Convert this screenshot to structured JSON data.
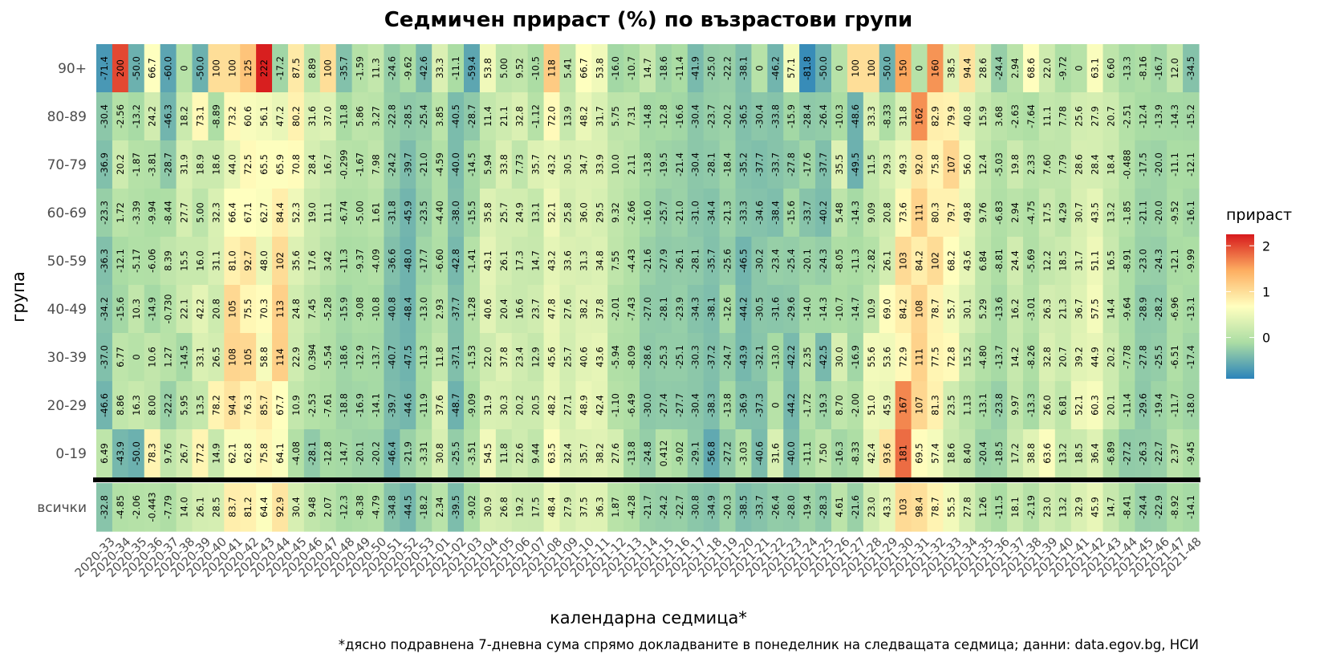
{
  "chart_data": {
    "type": "heatmap",
    "title": "Седмичен прираст (%) по възрастови групи",
    "xlabel": "календарна седмица*",
    "ylabel": "група",
    "caption": "*дясно подравнена 7-дневна сума спрямо докладваните в понеделник на следващата седмица; данни: data.egov.bg, НСИ",
    "legend_title": "прираст",
    "legend_ticks": [
      "2",
      "1",
      "0"
    ],
    "legend_tick_values": [
      2,
      1,
      0
    ],
    "color_range": [
      -0.9,
      2.25
    ],
    "colors": [
      "#2b83ba",
      "#abdda4",
      "#ffffbf",
      "#fdae61",
      "#d7191c"
    ],
    "weeks": [
      "2020-33",
      "2020-34",
      "2020-35",
      "2020-36",
      "2020-37",
      "2020-38",
      "2020-39",
      "2020-40",
      "2020-41",
      "2020-42",
      "2020-43",
      "2020-44",
      "2020-45",
      "2020-46",
      "2020-47",
      "2020-48",
      "2020-49",
      "2020-50",
      "2020-51",
      "2020-52",
      "2020-53",
      "2021-01",
      "2021-02",
      "2021-03",
      "2021-04",
      "2021-05",
      "2021-06",
      "2021-07",
      "2021-08",
      "2021-09",
      "2021-10",
      "2021-11",
      "2021-12",
      "2021-13",
      "2021-14",
      "2021-15",
      "2021-16",
      "2021-17",
      "2021-18",
      "2021-19",
      "2021-20",
      "2021-21",
      "2021-22",
      "2021-23",
      "2021-24",
      "2021-25",
      "2021-26",
      "2021-27",
      "2021-28",
      "2021-29",
      "2021-30",
      "2021-31",
      "2021-32",
      "2021-33",
      "2021-34",
      "2021-35",
      "2021-36",
      "2021-37",
      "2021-38",
      "2021-39",
      "2021-40",
      "2021-41",
      "2021-42",
      "2021-43",
      "2021-44",
      "2021-45",
      "2021-46",
      "2021-47",
      "2021-48"
    ],
    "rows": [
      {
        "group": "90+",
        "values": [
          "-71.4",
          "200",
          "-50.0",
          "66.7",
          "-60.0",
          "0",
          "-50.0",
          "100",
          "100",
          "125",
          "222",
          "-17.2",
          "87.5",
          "8.89",
          "100",
          "-35.7",
          "-1.59",
          "11.3",
          "-24.6",
          "-9.62",
          "-42.6",
          "33.3",
          "-11.1",
          "-59.4",
          "53.8",
          "5.00",
          "9.52",
          "-10.5",
          "118",
          "5.41",
          "66.7",
          "53.8",
          "-16.0",
          "-10.7",
          "14.7",
          "-18.6",
          "-11.4",
          "-41.9",
          "-25.0",
          "-22.2",
          "-38.1",
          "0",
          "-46.2",
          "57.1",
          "-81.8",
          "-50.0",
          "0",
          "100",
          "100",
          "-50.0",
          "150",
          "0",
          "160",
          "38.5",
          "94.4",
          "28.6",
          "-24.4",
          "2.94",
          "68.6",
          "22.0",
          "-9.72",
          "0",
          "63.1",
          "6.60",
          "-13.3",
          "-8.16",
          "-16.7",
          "12.0",
          "-34.5"
        ]
      },
      {
        "group": "80-89",
        "values": [
          "-30.4",
          "-2.56",
          "-13.2",
          "24.2",
          "-46.3",
          "18.2",
          "73.1",
          "-8.89",
          "73.2",
          "60.6",
          "56.1",
          "47.2",
          "80.2",
          "31.6",
          "37.0",
          "-11.8",
          "5.86",
          "3.27",
          "-22.8",
          "-28.5",
          "-25.4",
          "3.85",
          "-40.5",
          "-28.7",
          "11.4",
          "21.1",
          "32.8",
          "-1.12",
          "72.0",
          "13.9",
          "48.2",
          "31.7",
          "5.75",
          "7.31",
          "-14.8",
          "-12.8",
          "-16.6",
          "-30.4",
          "-23.7",
          "-20.2",
          "-36.5",
          "-30.4",
          "-33.8",
          "-15.9",
          "-28.4",
          "-26.4",
          "-10.3",
          "-48.6",
          "33.3",
          "-8.33",
          "31.8",
          "162",
          "82.9",
          "79.9",
          "40.8",
          "15.9",
          "3.68",
          "-2.63",
          "-7.64",
          "11.1",
          "7.78",
          "25.6",
          "27.9",
          "20.7",
          "-2.51",
          "-12.4",
          "-13.9",
          "-14.3",
          "-15.2"
        ]
      },
      {
        "group": "70-79",
        "values": [
          "-36.9",
          "20.2",
          "-1.87",
          "-3.81",
          "-28.7",
          "31.9",
          "18.9",
          "18.6",
          "44.0",
          "72.5",
          "65.5",
          "65.9",
          "70.8",
          "28.4",
          "16.7",
          "-0.299",
          "-1.67",
          "7.98",
          "-24.2",
          "-39.7",
          "-21.0",
          "-4.59",
          "-40.0",
          "-14.5",
          "5.94",
          "33.8",
          "7.73",
          "35.7",
          "43.2",
          "30.5",
          "34.7",
          "33.9",
          "10.0",
          "2.11",
          "-13.8",
          "-19.5",
          "-21.4",
          "-30.4",
          "-28.1",
          "-18.4",
          "-35.2",
          "-37.7",
          "-33.7",
          "-27.8",
          "-17.6",
          "-37.7",
          "35.5",
          "-49.5",
          "11.5",
          "29.3",
          "49.3",
          "92.0",
          "75.8",
          "107",
          "56.0",
          "12.4",
          "-5.03",
          "19.8",
          "2.33",
          "7.60",
          "7.79",
          "28.6",
          "28.4",
          "18.4",
          "-0.488",
          "-17.5",
          "-20.0",
          "-11.1",
          "-12.1"
        ]
      },
      {
        "group": "60-69",
        "values": [
          "-23.3",
          "1.72",
          "-3.39",
          "-9.94",
          "-8.44",
          "27.7",
          "5.00",
          "32.3",
          "66.4",
          "67.1",
          "62.7",
          "84.4",
          "52.3",
          "19.0",
          "11.1",
          "-6.74",
          "-5.00",
          "1.61",
          "-31.8",
          "-45.9",
          "-23.5",
          "-4.40",
          "-38.0",
          "-15.5",
          "35.8",
          "25.7",
          "24.9",
          "13.1",
          "52.1",
          "25.8",
          "36.0",
          "29.5",
          "9.32",
          "-2.66",
          "-16.0",
          "-25.7",
          "-21.0",
          "-31.0",
          "-34.4",
          "-21.3",
          "-33.3",
          "-34.6",
          "-38.4",
          "-15.6",
          "-33.7",
          "-40.2",
          "5.48",
          "-14.3",
          "9.09",
          "20.8",
          "73.6",
          "111",
          "80.3",
          "79.7",
          "49.8",
          "9.76",
          "-6.83",
          "2.94",
          "-4.75",
          "17.5",
          "4.29",
          "30.7",
          "43.5",
          "13.2",
          "-1.85",
          "-21.1",
          "-20.0",
          "-9.52",
          "-16.1"
        ]
      },
      {
        "group": "50-59",
        "values": [
          "-36.3",
          "-12.1",
          "-5.17",
          "-6.06",
          "8.39",
          "15.5",
          "16.0",
          "31.1",
          "81.0",
          "92.7",
          "48.0",
          "102",
          "35.6",
          "17.6",
          "3.42",
          "-11.3",
          "-9.37",
          "-4.09",
          "-36.6",
          "-48.0",
          "-17.7",
          "-6.60",
          "-42.8",
          "-1.41",
          "43.1",
          "26.1",
          "17.3",
          "14.7",
          "43.2",
          "33.6",
          "31.3",
          "34.8",
          "7.55",
          "-4.43",
          "-21.6",
          "-27.9",
          "-26.1",
          "-28.1",
          "-35.7",
          "-25.6",
          "-46.5",
          "-30.2",
          "-23.4",
          "-25.4",
          "-20.1",
          "-24.3",
          "-8.05",
          "-11.3",
          "-2.82",
          "26.1",
          "103",
          "84.2",
          "102",
          "68.2",
          "43.6",
          "6.84",
          "-8.81",
          "24.4",
          "-5.69",
          "12.2",
          "18.5",
          "31.7",
          "51.1",
          "16.5",
          "-8.91",
          "-23.0",
          "-24.3",
          "-12.1",
          "-9.99"
        ]
      },
      {
        "group": "40-49",
        "values": [
          "-34.2",
          "-15.6",
          "10.3",
          "-14.9",
          "-0.730",
          "22.1",
          "42.2",
          "20.8",
          "105",
          "75.5",
          "70.3",
          "113",
          "24.8",
          "7.45",
          "-5.28",
          "-15.9",
          "-9.08",
          "-10.8",
          "-40.8",
          "-48.4",
          "-13.0",
          "2.93",
          "-37.7",
          "-1.28",
          "40.6",
          "20.4",
          "16.6",
          "23.7",
          "47.8",
          "27.6",
          "38.2",
          "37.8",
          "-2.01",
          "-7.43",
          "-27.0",
          "-28.1",
          "-23.9",
          "-34.3",
          "-38.1",
          "-12.6",
          "-44.2",
          "-30.5",
          "-31.6",
          "-29.6",
          "-14.0",
          "-14.3",
          "-10.7",
          "-14.7",
          "10.9",
          "69.0",
          "84.2",
          "108",
          "78.7",
          "55.7",
          "30.1",
          "5.29",
          "-13.6",
          "16.2",
          "-3.01",
          "26.3",
          "21.3",
          "36.7",
          "57.5",
          "14.4",
          "-9.64",
          "-28.9",
          "-28.2",
          "-6.96",
          "-13.1"
        ]
      },
      {
        "group": "30-39",
        "values": [
          "-37.0",
          "6.77",
          "0",
          "10.6",
          "1.27",
          "-14.5",
          "33.1",
          "26.5",
          "108",
          "105",
          "58.8",
          "114",
          "22.9",
          "0.394",
          "-5.54",
          "-18.6",
          "-12.9",
          "-13.7",
          "-40.7",
          "-47.5",
          "-11.3",
          "11.8",
          "-37.1",
          "-1.53",
          "22.0",
          "37.8",
          "23.4",
          "12.9",
          "45.6",
          "25.7",
          "40.6",
          "43.6",
          "-5.94",
          "-8.09",
          "-28.6",
          "-25.3",
          "-25.1",
          "-30.3",
          "-37.2",
          "-24.7",
          "-43.9",
          "-32.1",
          "-13.0",
          "-42.2",
          "2.35",
          "-42.5",
          "30.0",
          "-16.9",
          "55.6",
          "53.6",
          "72.9",
          "111",
          "77.5",
          "72.8",
          "15.2",
          "-4.80",
          "-13.7",
          "14.2",
          "-8.26",
          "32.8",
          "20.7",
          "39.2",
          "44.9",
          "20.2",
          "-7.78",
          "-27.8",
          "-25.5",
          "-6.51",
          "-17.4"
        ]
      },
      {
        "group": "20-29",
        "values": [
          "-46.6",
          "8.86",
          "16.3",
          "8.00",
          "-22.2",
          "5.95",
          "13.5",
          "78.2",
          "94.4",
          "76.3",
          "85.7",
          "67.7",
          "10.9",
          "-2.53",
          "-7.61",
          "-18.8",
          "-16.9",
          "-14.1",
          "-39.7",
          "-44.6",
          "-11.9",
          "37.6",
          "-48.7",
          "-9.09",
          "31.9",
          "30.3",
          "20.2",
          "20.5",
          "48.2",
          "27.1",
          "48.9",
          "42.4",
          "-1.10",
          "-6.49",
          "-30.0",
          "-27.4",
          "-27.7",
          "-30.4",
          "-38.3",
          "-13.8",
          "-36.9",
          "-37.3",
          "0",
          "-44.2",
          "-1.72",
          "-19.3",
          "8.70",
          "-2.00",
          "51.0",
          "45.9",
          "167",
          "107",
          "81.3",
          "23.5",
          "1.13",
          "-13.1",
          "-23.8",
          "9.97",
          "-13.3",
          "26.0",
          "6.81",
          "52.1",
          "60.3",
          "20.1",
          "-11.4",
          "-29.6",
          "-19.4",
          "-11.7",
          "-18.0"
        ]
      },
      {
        "group": "0-19",
        "values": [
          "6.49",
          "-43.9",
          "-50.0",
          "78.3",
          "9.76",
          "26.7",
          "77.2",
          "14.9",
          "62.1",
          "62.8",
          "75.8",
          "64.1",
          "-4.08",
          "-28.1",
          "-12.8",
          "-14.7",
          "-20.1",
          "-20.2",
          "-46.4",
          "-21.9",
          "-3.31",
          "30.8",
          "-25.5",
          "-3.51",
          "54.5",
          "11.8",
          "22.6",
          "9.44",
          "63.5",
          "32.4",
          "35.7",
          "38.2",
          "27.6",
          "-13.8",
          "-24.8",
          "0.412",
          "-9.02",
          "-29.1",
          "-56.8",
          "-27.2",
          "-3.03",
          "-40.6",
          "31.6",
          "-40.0",
          "-11.1",
          "7.50",
          "-16.3",
          "-8.33",
          "42.4",
          "93.6",
          "181",
          "69.5",
          "57.4",
          "18.6",
          "8.40",
          "-20.4",
          "-18.5",
          "17.2",
          "38.8",
          "63.6",
          "13.2",
          "18.5",
          "36.4",
          "-6.89",
          "-27.2",
          "-26.3",
          "-22.7",
          "2.37",
          "-9.45"
        ]
      },
      {
        "group": "всички",
        "values": [
          "-32.8",
          "-4.85",
          "-2.06",
          "-0.443",
          "-7.79",
          "14.0",
          "26.1",
          "28.5",
          "83.7",
          "81.2",
          "64.4",
          "92.9",
          "30.4",
          "9.48",
          "2.07",
          "-12.3",
          "-8.38",
          "-4.79",
          "-34.8",
          "-44.5",
          "-18.2",
          "2.34",
          "-39.5",
          "-9.02",
          "30.9",
          "26.8",
          "19.2",
          "17.5",
          "48.4",
          "27.9",
          "37.5",
          "36.3",
          "1.87",
          "-4.28",
          "-21.7",
          "-24.2",
          "-22.7",
          "-30.8",
          "-34.9",
          "-20.3",
          "-38.5",
          "-33.7",
          "-26.4",
          "-28.0",
          "-19.4",
          "-28.3",
          "4.61",
          "-21.6",
          "23.0",
          "43.3",
          "103",
          "98.4",
          "78.7",
          "55.5",
          "27.8",
          "1.26",
          "-11.5",
          "18.1",
          "-2.19",
          "23.0",
          "13.2",
          "32.9",
          "45.9",
          "14.7",
          "-8.41",
          "-24.4",
          "-22.9",
          "-8.92",
          "-14.1"
        ]
      }
    ]
  }
}
